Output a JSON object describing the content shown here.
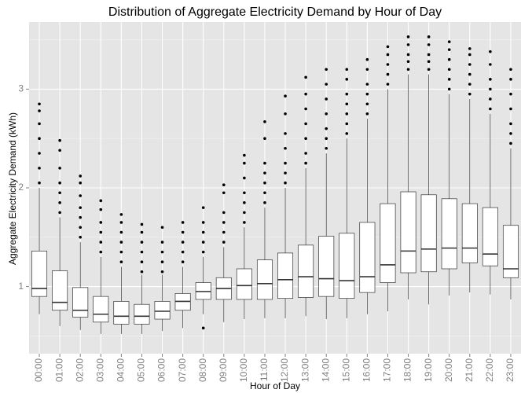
{
  "chart_data": {
    "type": "box",
    "title": "Distribution of Aggregate Electricity Demand by Hour of Day",
    "x_label": "Hour of Day",
    "y_label": "Aggregate Electricity Demand (kWh)",
    "categories": [
      "00:00",
      "01:00",
      "02:00",
      "03:00",
      "04:00",
      "05:00",
      "06:00",
      "07:00",
      "08:00",
      "09:00",
      "10:00",
      "11:00",
      "12:00",
      "13:00",
      "14:00",
      "15:00",
      "16:00",
      "17:00",
      "18:00",
      "19:00",
      "20:00",
      "21:00",
      "22:00",
      "23:00"
    ],
    "whisker_low": [
      0.72,
      0.6,
      0.56,
      0.52,
      0.52,
      0.52,
      0.55,
      0.58,
      0.72,
      0.64,
      0.67,
      0.68,
      0.68,
      0.7,
      0.67,
      0.68,
      0.72,
      0.75,
      0.87,
      0.82,
      0.91,
      0.94,
      0.92,
      0.87
    ],
    "q1": [
      0.9,
      0.76,
      0.69,
      0.64,
      0.62,
      0.62,
      0.67,
      0.76,
      0.87,
      0.87,
      0.87,
      0.87,
      0.88,
      0.89,
      0.9,
      0.88,
      0.94,
      1.04,
      1.14,
      1.15,
      1.18,
      1.24,
      1.21,
      1.09
    ],
    "median": [
      0.98,
      0.84,
      0.76,
      0.72,
      0.7,
      0.7,
      0.75,
      0.85,
      0.95,
      0.98,
      1.01,
      1.03,
      1.07,
      1.1,
      1.08,
      1.06,
      1.1,
      1.22,
      1.36,
      1.38,
      1.39,
      1.39,
      1.33,
      1.18
    ],
    "q3": [
      1.36,
      1.16,
      0.99,
      0.9,
      0.85,
      0.82,
      0.85,
      0.93,
      1.04,
      1.09,
      1.18,
      1.27,
      1.34,
      1.42,
      1.51,
      1.54,
      1.65,
      1.84,
      1.96,
      1.93,
      1.89,
      1.84,
      1.8,
      1.62
    ],
    "whisker_high": [
      2.0,
      1.7,
      1.45,
      1.3,
      1.2,
      1.12,
      1.12,
      1.2,
      1.3,
      1.4,
      1.6,
      1.8,
      2.0,
      2.2,
      2.35,
      2.5,
      2.7,
      3.0,
      3.15,
      3.15,
      2.95,
      2.9,
      2.75,
      2.4
    ],
    "outliers": [
      [
        2.05,
        2.2,
        2.35,
        2.5,
        2.65,
        2.78,
        2.85
      ],
      [
        1.75,
        1.85,
        1.95,
        2.05,
        2.2,
        2.38,
        2.48
      ],
      [
        1.5,
        1.6,
        1.7,
        1.8,
        1.92,
        2.05,
        2.12
      ],
      [
        1.35,
        1.45,
        1.55,
        1.65,
        1.78,
        1.87
      ],
      [
        1.25,
        1.35,
        1.45,
        1.55,
        1.65,
        1.73
      ],
      [
        1.15,
        1.25,
        1.35,
        1.45,
        1.55,
        1.63
      ],
      [
        1.15,
        1.25,
        1.35,
        1.45,
        1.6
      ],
      [
        1.25,
        1.35,
        1.45,
        1.55,
        1.65
      ],
      [
        0.58,
        1.35,
        1.45,
        1.55,
        1.65,
        1.8
      ],
      [
        1.45,
        1.55,
        1.65,
        1.75,
        1.95,
        2.03
      ],
      [
        1.65,
        1.75,
        1.85,
        1.95,
        2.1,
        2.25,
        2.33
      ],
      [
        1.85,
        1.95,
        2.05,
        2.15,
        2.25,
        2.5,
        2.67
      ],
      [
        2.05,
        2.15,
        2.25,
        2.4,
        2.55,
        2.75,
        2.93
      ],
      [
        2.25,
        2.35,
        2.5,
        2.65,
        2.8,
        2.95,
        3.12
      ],
      [
        2.4,
        2.5,
        2.6,
        2.75,
        2.9,
        3.05,
        3.2
      ],
      [
        2.55,
        2.65,
        2.75,
        2.85,
        2.95,
        3.1,
        3.2
      ],
      [
        2.75,
        2.85,
        2.95,
        3.05,
        3.2,
        3.3
      ],
      [
        3.05,
        3.15,
        3.25,
        3.35,
        3.43
      ],
      [
        3.2,
        3.28,
        3.35,
        3.45,
        3.53
      ],
      [
        3.2,
        3.28,
        3.35,
        3.45,
        3.53
      ],
      [
        3.0,
        3.1,
        3.2,
        3.3,
        3.4,
        3.48
      ],
      [
        2.95,
        3.05,
        3.15,
        3.25,
        3.35,
        3.41
      ],
      [
        2.8,
        2.9,
        3.0,
        3.1,
        3.25,
        3.38
      ],
      [
        2.45,
        2.55,
        2.65,
        2.8,
        2.95,
        3.1,
        3.2
      ]
    ],
    "ylim": [
      0.32,
      3.68
    ],
    "yticks": [
      1,
      2,
      3
    ],
    "yminor": [
      0.5,
      1.5,
      2.5,
      3.5
    ],
    "grid": true
  }
}
